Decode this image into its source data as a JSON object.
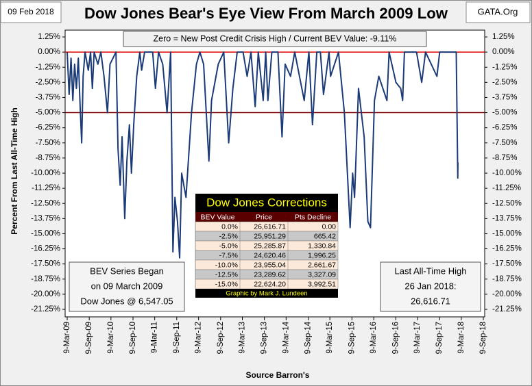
{
  "chart_data": {
    "type": "line",
    "title": "Dow Jones Bear's Eye View From March 2009 Low",
    "date_label": "09 Feb 2018",
    "source_label": "GATA.Org",
    "annotation": "Zero = New Post Credit Crisis High / Current BEV Value:  -9.11%",
    "ylabel": "Percent From Last All-Time High",
    "xlabel": "Source Barron's",
    "grid": false,
    "ylim": [
      -21.25,
      1.25
    ],
    "yticks": [
      {
        "value": 1.25,
        "label": "1.25%"
      },
      {
        "value": 0,
        "label": "0.00%"
      },
      {
        "value": -1.25,
        "label": "-1.25%"
      },
      {
        "value": -2.5,
        "label": "-2.50%"
      },
      {
        "value": -3.75,
        "label": "-3.75%"
      },
      {
        "value": -5,
        "label": "-5.00%"
      },
      {
        "value": -6.25,
        "label": "-6.25%"
      },
      {
        "value": -7.5,
        "label": "-7.50%"
      },
      {
        "value": -8.75,
        "label": "-8.75%"
      },
      {
        "value": -10,
        "label": "-10.00%"
      },
      {
        "value": -11.25,
        "label": "-11.25%"
      },
      {
        "value": -12.5,
        "label": "-12.50%"
      },
      {
        "value": -13.75,
        "label": "-13.75%"
      },
      {
        "value": -15,
        "label": "-15.00%"
      },
      {
        "value": -16.25,
        "label": "-16.25%"
      },
      {
        "value": -17.5,
        "label": "-17.50%"
      },
      {
        "value": -18.75,
        "label": "-18.75%"
      },
      {
        "value": -20,
        "label": "-20.00%"
      },
      {
        "value": -21.25,
        "label": "-21.25%"
      }
    ],
    "y2lim": [
      -21.25,
      1.25
    ],
    "y2ticks": [
      {
        "value": 1.25,
        "label": "1.25%"
      },
      {
        "value": 0,
        "label": "0.00%"
      },
      {
        "value": -1.25,
        "label": "-1.25%"
      },
      {
        "value": -2.5,
        "label": "-2.50%"
      },
      {
        "value": -3.75,
        "label": "-3.75%"
      },
      {
        "value": -5,
        "label": "-5.00%"
      },
      {
        "value": -6.25,
        "label": "-6.25%"
      },
      {
        "value": -7.5,
        "label": "-7.50%"
      },
      {
        "value": -8.75,
        "label": "-8.75%"
      },
      {
        "value": -10,
        "label": "-10.00%"
      },
      {
        "value": -11.25,
        "label": "-11.25%"
      },
      {
        "value": -12.5,
        "label": "-12.50%"
      },
      {
        "value": -13.75,
        "label": "-13.75%"
      },
      {
        "value": -15,
        "label": "-15.00%"
      },
      {
        "value": -16.25,
        "label": "-16.25%"
      },
      {
        "value": -17.5,
        "label": "-17.50%"
      },
      {
        "value": -18.75,
        "label": "-18.75%"
      },
      {
        "value": -20,
        "label": "-20.00%"
      },
      {
        "value": -21.25,
        "label": "-21.25%"
      }
    ],
    "xlim": [
      "2009-03-09",
      "2018-09-09"
    ],
    "xticks": [
      {
        "value": "2009-03-09",
        "label": "9-Mar-09"
      },
      {
        "value": "2009-09-09",
        "label": "9-Sep-09"
      },
      {
        "value": "2010-03-09",
        "label": "9-Mar-10"
      },
      {
        "value": "2010-09-09",
        "label": "9-Sep-10"
      },
      {
        "value": "2011-03-09",
        "label": "9-Mar-11"
      },
      {
        "value": "2011-09-09",
        "label": "9-Sep-11"
      },
      {
        "value": "2012-03-09",
        "label": "9-Mar-12"
      },
      {
        "value": "2012-09-09",
        "label": "9-Sep-12"
      },
      {
        "value": "2013-03-09",
        "label": "9-Mar-13"
      },
      {
        "value": "2013-09-09",
        "label": "9-Sep-13"
      },
      {
        "value": "2014-03-09",
        "label": "9-Mar-14"
      },
      {
        "value": "2014-09-09",
        "label": "9-Sep-14"
      },
      {
        "value": "2015-03-09",
        "label": "9-Mar-15"
      },
      {
        "value": "2015-09-09",
        "label": "9-Sep-15"
      },
      {
        "value": "2016-03-09",
        "label": "9-Mar-16"
      },
      {
        "value": "2016-09-09",
        "label": "9-Sep-16"
      },
      {
        "value": "2017-03-09",
        "label": "9-Mar-17"
      },
      {
        "value": "2017-09-09",
        "label": "9-Sep-17"
      },
      {
        "value": "2018-03-09",
        "label": "9-Mar-18"
      },
      {
        "value": "2018-09-09",
        "label": "9-Sep-18"
      }
    ],
    "reference_lines": [
      {
        "value": 0,
        "color": "#e00000"
      },
      {
        "value": -5,
        "color": "#800000"
      }
    ],
    "series": [
      {
        "name": "BEV",
        "color": "#1b3a78",
        "x": [
          "2009-03-09",
          "2009-03-25",
          "2009-04-10",
          "2009-04-25",
          "2009-05-10",
          "2009-05-25",
          "2009-06-10",
          "2009-06-25",
          "2009-07-08",
          "2009-07-20",
          "2009-08-05",
          "2009-09-01",
          "2009-09-20",
          "2009-10-05",
          "2009-10-20",
          "2009-11-20",
          "2009-12-15",
          "2010-01-10",
          "2010-02-08",
          "2010-03-01",
          "2010-04-20",
          "2010-05-07",
          "2010-05-25",
          "2010-06-10",
          "2010-07-02",
          "2010-07-20",
          "2010-08-10",
          "2010-08-27",
          "2010-09-15",
          "2010-10-10",
          "2010-11-05",
          "2010-11-20",
          "2010-12-15",
          "2011-02-20",
          "2011-03-15",
          "2011-04-10",
          "2011-05-15",
          "2011-06-20",
          "2011-07-20",
          "2011-08-08",
          "2011-08-25",
          "2011-09-15",
          "2011-10-03",
          "2011-10-20",
          "2011-11-25",
          "2012-01-10",
          "2012-02-20",
          "2012-03-20",
          "2012-04-20",
          "2012-06-03",
          "2012-06-25",
          "2012-08-20",
          "2012-10-05",
          "2012-11-15",
          "2012-12-20",
          "2013-01-25",
          "2013-03-15",
          "2013-04-18",
          "2013-05-20",
          "2013-06-24",
          "2013-07-20",
          "2013-08-30",
          "2013-09-20",
          "2013-10-08",
          "2013-11-10",
          "2013-12-31",
          "2014-02-03",
          "2014-03-01",
          "2014-04-15",
          "2014-05-20",
          "2014-08-07",
          "2014-09-15",
          "2014-10-15",
          "2014-11-20",
          "2014-12-20",
          "2015-01-15",
          "2015-03-02",
          "2015-03-15",
          "2015-05-20",
          "2015-07-08",
          "2015-08-25",
          "2015-09-15",
          "2015-10-01",
          "2015-11-03",
          "2015-12-20",
          "2016-01-20",
          "2016-02-11",
          "2016-03-15",
          "2016-04-20",
          "2016-06-27",
          "2016-07-15",
          "2016-09-10",
          "2016-10-20",
          "2016-11-05",
          "2016-11-20",
          "2017-03-01",
          "2017-04-13",
          "2017-05-15",
          "2017-08-18",
          "2017-09-10",
          "2018-01-26",
          "2018-02-08",
          "2018-02-09"
        ],
        "values": [
          0,
          -3.5,
          -0.5,
          -4,
          -1,
          -3,
          -0.5,
          -4.5,
          -7.5,
          -2,
          0,
          -1.5,
          0,
          -3,
          0,
          -1,
          0,
          -2,
          -5,
          -1,
          0,
          -8,
          -11,
          -7,
          -13.75,
          -9,
          -6,
          -10,
          -6,
          -2,
          0,
          -1.5,
          0,
          0,
          -3,
          0,
          -1,
          -5,
          0,
          -16.5,
          -12,
          -14,
          -17,
          -10,
          -12,
          -5,
          -1,
          0,
          -1,
          -9,
          -4,
          -1,
          0,
          -7.5,
          -3,
          0,
          0,
          -2,
          0,
          -4.5,
          0,
          -4,
          0,
          -4,
          0,
          0,
          -7,
          -1,
          -2,
          0,
          -4,
          0,
          -6,
          0,
          0,
          -3.5,
          0,
          -2,
          0,
          -5,
          -14.5,
          -10,
          -12,
          -3,
          -7,
          -14,
          -14.5,
          -4,
          -2,
          -4,
          0,
          -2.5,
          -3,
          -4,
          0,
          0,
          -2.5,
          0,
          -2,
          0,
          0,
          -10.4,
          -9.11
        ]
      }
    ],
    "left_box": [
      "BEV Series Began",
      "on 09 March 2009",
      "Dow Jones @ 6,547.05"
    ],
    "right_box": [
      "Last All-Time High",
      "26 Jan 2018:",
      "26,616.71"
    ],
    "table": {
      "title": "Dow Jones Corrections",
      "columns": [
        "BEV Value",
        "Price",
        "Pts Decline"
      ],
      "rows": [
        [
          "0.0%",
          "26,616.71",
          "0.00"
        ],
        [
          "-2.5%",
          "25,951.29",
          "665.42"
        ],
        [
          "-5.0%",
          "25,285.87",
          "1,330.84"
        ],
        [
          "-7.5%",
          "24,620.46",
          "1,996.25"
        ],
        [
          "-10.0%",
          "23,955.04",
          "2,661.67"
        ],
        [
          "-12.5%",
          "23,289.62",
          "3,327.09"
        ],
        [
          "-15.0%",
          "22,624.20",
          "3,992.51"
        ]
      ],
      "credit": "Graphic by Mark J. Lundeen"
    }
  }
}
